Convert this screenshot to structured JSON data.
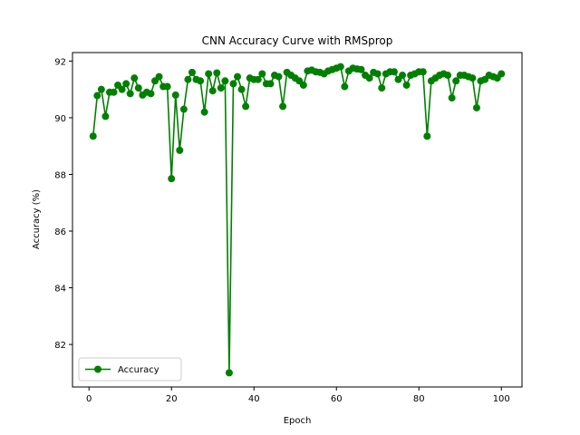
{
  "chart_data": {
    "type": "line",
    "title": "CNN Accuracy Curve with RMSprop",
    "xlabel": "Epoch",
    "ylabel": "Accuracy (%)",
    "xlim": [
      -4,
      105
    ],
    "ylim": [
      80.5,
      92.3
    ],
    "x_ticks": [
      0,
      20,
      40,
      60,
      80,
      100
    ],
    "y_ticks": [
      82,
      84,
      86,
      88,
      90,
      92
    ],
    "grid": false,
    "legend": {
      "position": "lower-left"
    },
    "series": [
      {
        "name": "Accuracy",
        "color": "#008000",
        "marker": "circle",
        "x": [
          1,
          2,
          3,
          4,
          5,
          6,
          7,
          8,
          9,
          10,
          11,
          12,
          13,
          14,
          15,
          16,
          17,
          18,
          19,
          20,
          21,
          22,
          23,
          24,
          25,
          26,
          27,
          28,
          29,
          30,
          31,
          32,
          33,
          34,
          35,
          36,
          37,
          38,
          39,
          40,
          41,
          42,
          43,
          44,
          45,
          46,
          47,
          48,
          49,
          50,
          51,
          52,
          53,
          54,
          55,
          56,
          57,
          58,
          59,
          60,
          61,
          62,
          63,
          64,
          65,
          66,
          67,
          68,
          69,
          70,
          71,
          72,
          73,
          74,
          75,
          76,
          77,
          78,
          79,
          80,
          81,
          82,
          83,
          84,
          85,
          86,
          87,
          88,
          89,
          90,
          91,
          92,
          93,
          94,
          95,
          96,
          97,
          98,
          99,
          100
        ],
        "values": [
          89.35,
          90.78,
          91.0,
          90.05,
          90.9,
          90.9,
          91.15,
          91.0,
          91.2,
          90.85,
          91.4,
          91.05,
          90.8,
          90.9,
          90.85,
          91.3,
          91.45,
          91.1,
          91.1,
          87.85,
          90.8,
          88.85,
          90.3,
          91.35,
          91.6,
          91.35,
          91.3,
          90.2,
          91.55,
          90.95,
          91.58,
          91.05,
          91.3,
          81.0,
          91.2,
          91.45,
          91.0,
          90.4,
          91.4,
          91.35,
          91.35,
          91.55,
          91.2,
          91.2,
          91.5,
          91.45,
          90.4,
          91.6,
          91.5,
          91.4,
          91.3,
          91.15,
          91.65,
          91.68,
          91.62,
          91.6,
          91.55,
          91.65,
          91.7,
          91.75,
          91.8,
          91.1,
          91.65,
          91.75,
          91.72,
          91.7,
          91.5,
          91.4,
          91.6,
          91.55,
          91.05,
          91.55,
          91.62,
          91.62,
          91.35,
          91.5,
          91.15,
          91.5,
          91.55,
          91.62,
          91.62,
          89.35,
          91.3,
          91.4,
          91.5,
          91.55,
          91.5,
          90.7,
          91.3,
          91.5,
          91.5,
          91.45,
          91.4,
          90.35,
          91.3,
          91.35,
          91.5,
          91.45,
          91.4,
          91.55
        ]
      }
    ]
  }
}
